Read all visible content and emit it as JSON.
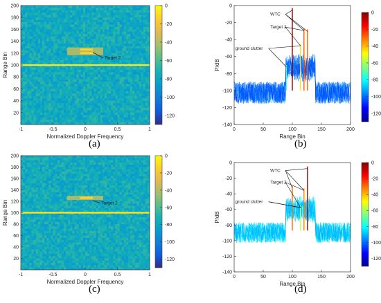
{
  "panel_labels": [
    "(a)",
    "(b)",
    "(c)",
    "(d)"
  ],
  "chart_data": [
    {
      "type": "heatmap",
      "panel": "(a)",
      "xlabel": "Normalized Doppler Frequency",
      "ylabel": "Range Bin",
      "xlim": [
        -1,
        1
      ],
      "ylim": [
        0,
        200
      ],
      "x_ticks": [
        -1,
        -0.5,
        0,
        0.5,
        1
      ],
      "y_ticks": [
        20,
        40,
        60,
        80,
        100,
        120,
        140,
        160,
        180,
        200
      ],
      "colorbar_ticks": [
        0,
        -20,
        -40,
        -60,
        -80,
        -100,
        -120
      ],
      "colorbar_range": [
        -130,
        0
      ],
      "annotations": [
        {
          "text": "Target 2",
          "x": 0.3,
          "y": 112
        }
      ],
      "features": {
        "clutter_ridge_range_bin": 100,
        "target_range_bins": [
          120,
          126
        ]
      }
    },
    {
      "type": "line",
      "panel": "(b)",
      "xlabel": "Range Bin",
      "ylabel": "P/dB",
      "xlim": [
        0,
        200
      ],
      "ylim": [
        -140,
        0
      ],
      "x_ticks": [
        0,
        50,
        100,
        150,
        200
      ],
      "y_ticks": [
        0,
        -20,
        -40,
        -60,
        -80,
        -100,
        -120,
        -140
      ],
      "colorbar_ticks": [
        0,
        -20,
        -40,
        -60,
        -80,
        -100,
        -120
      ],
      "colorbar_range": [
        -130,
        0
      ],
      "annotations": [
        "WTC",
        "Target 2",
        "ground clutter"
      ],
      "noise_floor": -100,
      "peaks": [
        {
          "x": 100,
          "y": -3
        },
        {
          "x": 120,
          "y": -27
        },
        {
          "x": 126,
          "y": -28
        },
        {
          "x": 114,
          "y": -45
        },
        {
          "x": 90,
          "y": -70
        }
      ]
    },
    {
      "type": "heatmap",
      "panel": "(c)",
      "xlabel": "Normalized Doppler Frequency",
      "ylabel": "Range Bin",
      "xlim": [
        -1,
        1
      ],
      "ylim": [
        0,
        200
      ],
      "x_ticks": [
        -1,
        -0.5,
        0,
        0.5,
        1
      ],
      "y_ticks": [
        20,
        40,
        60,
        80,
        100,
        120,
        140,
        160,
        180,
        200
      ],
      "colorbar_ticks": [
        0,
        -20,
        -40,
        -60,
        -80,
        -100,
        -120
      ],
      "colorbar_range": [
        -130,
        0
      ],
      "annotations": [
        {
          "text": "Target 2",
          "x": 0.25,
          "y": 117
        }
      ],
      "features": {
        "clutter_ridge_range_bin": 100,
        "target_range_bins": [
          126
        ]
      }
    },
    {
      "type": "line",
      "panel": "(d)",
      "xlabel": "Range Bin",
      "ylabel": "P/dB",
      "xlim": [
        0,
        200
      ],
      "ylim": [
        -140,
        0
      ],
      "x_ticks": [
        0,
        50,
        100,
        150,
        200
      ],
      "y_ticks": [
        0,
        -20,
        -40,
        -60,
        -80,
        -100,
        -120,
        -140
      ],
      "colorbar_ticks": [
        0,
        -20,
        -40,
        -60,
        -80,
        -100,
        -120
      ],
      "colorbar_range": [
        -130,
        0
      ],
      "annotations": [
        "WTC",
        "Target 2",
        "ground clutter"
      ],
      "noise_floor": -87,
      "peaks": [
        {
          "x": 100,
          "y": -30
        },
        {
          "x": 120,
          "y": -33
        },
        {
          "x": 126,
          "y": -5
        },
        {
          "x": 114,
          "y": -55
        }
      ]
    }
  ]
}
